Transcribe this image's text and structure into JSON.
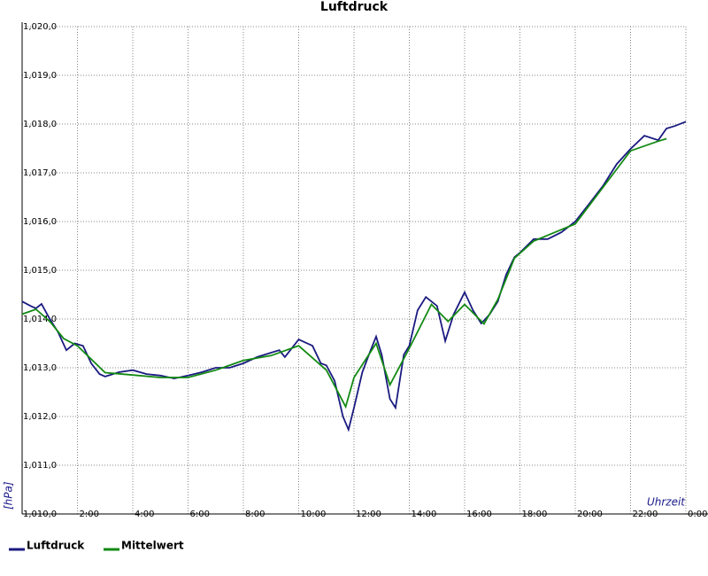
{
  "chart_data": {
    "type": "line",
    "title": "Luftdruck",
    "y_label": "[hPa]",
    "x_label": "Uhrzeit",
    "xlim": [
      0,
      24
    ],
    "ylim": [
      1010,
      1020
    ],
    "xticks": [
      {
        "value": 2,
        "label": "2:00"
      },
      {
        "value": 4,
        "label": "4:00"
      },
      {
        "value": 6,
        "label": "6:00"
      },
      {
        "value": 8,
        "label": "8:00"
      },
      {
        "value": 10,
        "label": "10:00"
      },
      {
        "value": 12,
        "label": "12:00"
      },
      {
        "value": 14,
        "label": "14:00"
      },
      {
        "value": 16,
        "label": "16:00"
      },
      {
        "value": 18,
        "label": "18:00"
      },
      {
        "value": 20,
        "label": "20:00"
      },
      {
        "value": 22,
        "label": "22:00"
      },
      {
        "value": 24,
        "label": "0:00"
      }
    ],
    "yticks": [
      {
        "value": 1010,
        "label": "1,010,0"
      },
      {
        "value": 1011,
        "label": "1,011,0"
      },
      {
        "value": 1012,
        "label": "1,012,0"
      },
      {
        "value": 1013,
        "label": "1,013,0"
      },
      {
        "value": 1014,
        "label": "1,014,0"
      },
      {
        "value": 1015,
        "label": "1,015,0"
      },
      {
        "value": 1016,
        "label": "1,016,0"
      },
      {
        "value": 1017,
        "label": "1,017,0"
      },
      {
        "value": 1018,
        "label": "1,018,0"
      },
      {
        "value": 1019,
        "label": "1,019,0"
      },
      {
        "value": 1020,
        "label": "1,020,0"
      }
    ],
    "grid": true,
    "series": [
      {
        "name": "Luftdruck",
        "color": "#1a1a80",
        "x": [
          0,
          0.3,
          0.5,
          0.7,
          1.0,
          1.3,
          1.6,
          1.9,
          2.2,
          2.5,
          2.8,
          3.0,
          3.5,
          4,
          4.5,
          5,
          5.5,
          6,
          6.5,
          7,
          7.5,
          8,
          8.5,
          9,
          9.3,
          9.5,
          10,
          10.5,
          10.8,
          11,
          11.3,
          11.6,
          11.8,
          12,
          12.3,
          12.6,
          12.8,
          13.0,
          13.3,
          13.5,
          13.8,
          14.0,
          14.3,
          14.6,
          15,
          15.3,
          15.6,
          16,
          16.3,
          16.6,
          16.9,
          17.2,
          17.5,
          17.8,
          18,
          18.5,
          19,
          19.5,
          20,
          20.5,
          21,
          21.5,
          22,
          22.5,
          23,
          23.3,
          23.6,
          24
        ],
        "values": [
          1014.36,
          1014.27,
          1014.22,
          1014.31,
          1014.0,
          1013.73,
          1013.36,
          1013.5,
          1013.45,
          1013.09,
          1012.87,
          1012.82,
          1012.91,
          1012.95,
          1012.87,
          1012.84,
          1012.78,
          1012.84,
          1012.91,
          1013.0,
          1013.0,
          1013.09,
          1013.22,
          1013.31,
          1013.36,
          1013.22,
          1013.58,
          1013.45,
          1013.09,
          1013.05,
          1012.73,
          1012.0,
          1011.73,
          1012.18,
          1012.91,
          1013.36,
          1013.64,
          1013.27,
          1012.36,
          1012.18,
          1013.27,
          1013.45,
          1014.18,
          1014.45,
          1014.27,
          1013.55,
          1014.09,
          1014.55,
          1014.18,
          1013.91,
          1014.09,
          1014.36,
          1014.91,
          1015.27,
          1015.36,
          1015.64,
          1015.64,
          1015.78,
          1016.0,
          1016.36,
          1016.73,
          1017.18,
          1017.49,
          1017.76,
          1017.67,
          1017.91,
          1017.96,
          1018.05
        ]
      },
      {
        "name": "Mittelwert",
        "color": "#138a13",
        "x": [
          0,
          0.5,
          1,
          1.5,
          2,
          3,
          4,
          5,
          6,
          7,
          8,
          9,
          10,
          11,
          11.7,
          12,
          12.8,
          13.3,
          14,
          14.8,
          15.4,
          16,
          16.7,
          17.2,
          17.8,
          18.5,
          20,
          21,
          22,
          23,
          23.3
        ],
        "values": [
          1014.1,
          1014.2,
          1013.95,
          1013.6,
          1013.45,
          1012.9,
          1012.85,
          1012.8,
          1012.8,
          1012.95,
          1013.15,
          1013.25,
          1013.45,
          1012.95,
          1012.2,
          1012.8,
          1013.5,
          1012.65,
          1013.4,
          1014.3,
          1013.95,
          1014.3,
          1013.9,
          1014.4,
          1015.25,
          1015.6,
          1015.95,
          1016.7,
          1017.45,
          1017.65,
          1017.7
        ]
      }
    ]
  }
}
